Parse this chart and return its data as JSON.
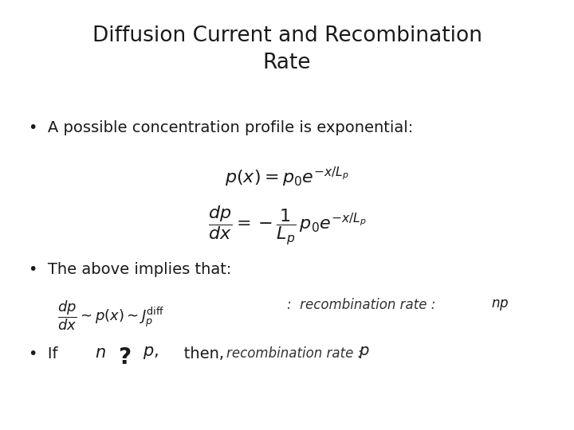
{
  "title": "Diffusion Current and Recombination\nRate",
  "title_fontsize": 19,
  "title_color": "#1a1a1a",
  "background_color": "#ffffff",
  "bullet1_text": "•  A possible concentration profile is exponential:",
  "bullet1_fontsize": 14,
  "eq1": "$p(x) = p_0 e^{-x/L_p}$",
  "eq2": "$\\dfrac{dp}{dx} = -\\dfrac{1}{L_p}\\,p_0 e^{-x/L_p}$",
  "eq_fontsize": 14,
  "bullet2_text": "•  The above implies that:",
  "bullet2_fontsize": 14,
  "eq3_math": "$\\dfrac{dp}{dx} \\sim p(x) \\sim J_p^{\\mathrm{diff}}$",
  "eq3_colon": ":  recombination rate :  ",
  "eq3_np": "$np$",
  "eq3_fontsize": 12,
  "bullet3_prefix": "•  If ",
  "bullet3_n": "$n$",
  "bullet3_q": "?",
  "bullet3_p": "$p,$",
  "bullet3_then": "   then,",
  "bullet3_suffix": "recombination rate :  ",
  "bullet3_math": "$p$",
  "bullet3_fontsize": 14,
  "bullet_color": "#1a1a1a",
  "math_color": "#1a1a1a",
  "small_color": "#333333"
}
